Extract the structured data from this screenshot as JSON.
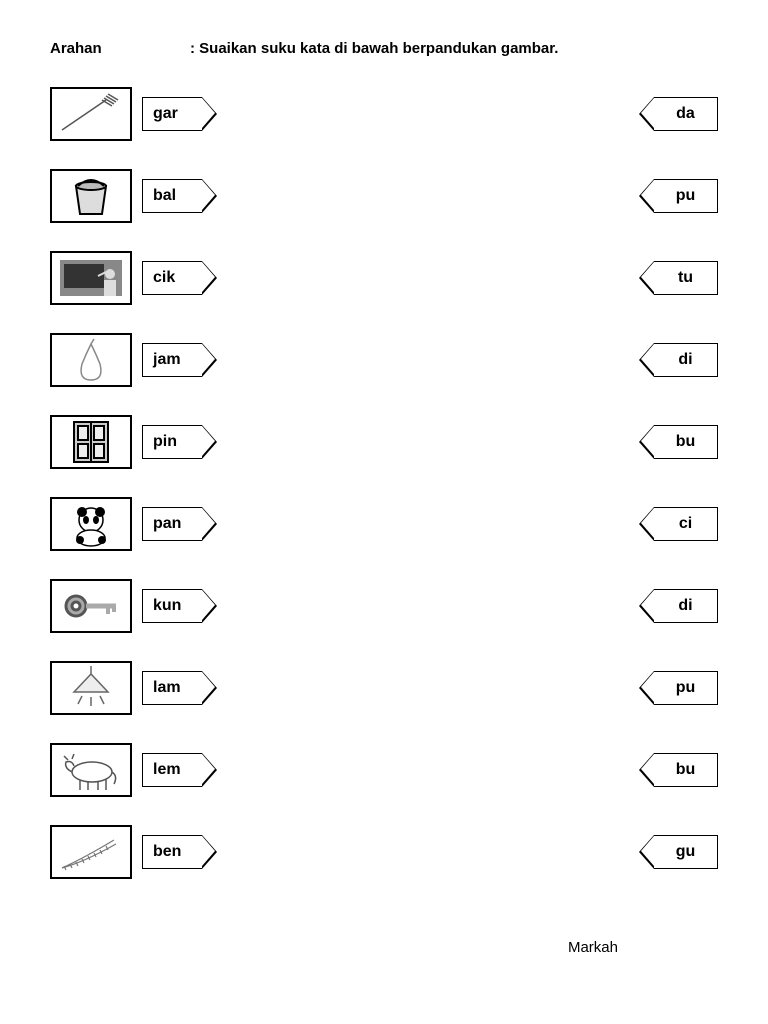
{
  "header": {
    "label": "Arahan",
    "instruction": ": Suaikan suku kata di bawah berpandukan gambar."
  },
  "rows": [
    {
      "icon": "fork",
      "left_syllable": "gar",
      "right_syllable": "da"
    },
    {
      "icon": "bucket",
      "left_syllable": "bal",
      "right_syllable": "pu"
    },
    {
      "icon": "teacher",
      "left_syllable": "cik",
      "right_syllable": "tu"
    },
    {
      "icon": "pear",
      "left_syllable": "jam",
      "right_syllable": "di"
    },
    {
      "icon": "door",
      "left_syllable": "pin",
      "right_syllable": "bu"
    },
    {
      "icon": "panda",
      "left_syllable": "pan",
      "right_syllable": "ci"
    },
    {
      "icon": "key",
      "left_syllable": "kun",
      "right_syllable": "di"
    },
    {
      "icon": "lamp",
      "left_syllable": "lam",
      "right_syllable": "pu"
    },
    {
      "icon": "cow",
      "left_syllable": "lem",
      "right_syllable": "bu"
    },
    {
      "icon": "okra",
      "left_syllable": "ben",
      "right_syllable": "gu"
    }
  ],
  "footer": {
    "label": "Markah"
  },
  "style": {
    "border_color": "#000000",
    "background": "#ffffff",
    "font": "Arial",
    "tag_fontsize": 16,
    "header_fontsize": 15
  }
}
